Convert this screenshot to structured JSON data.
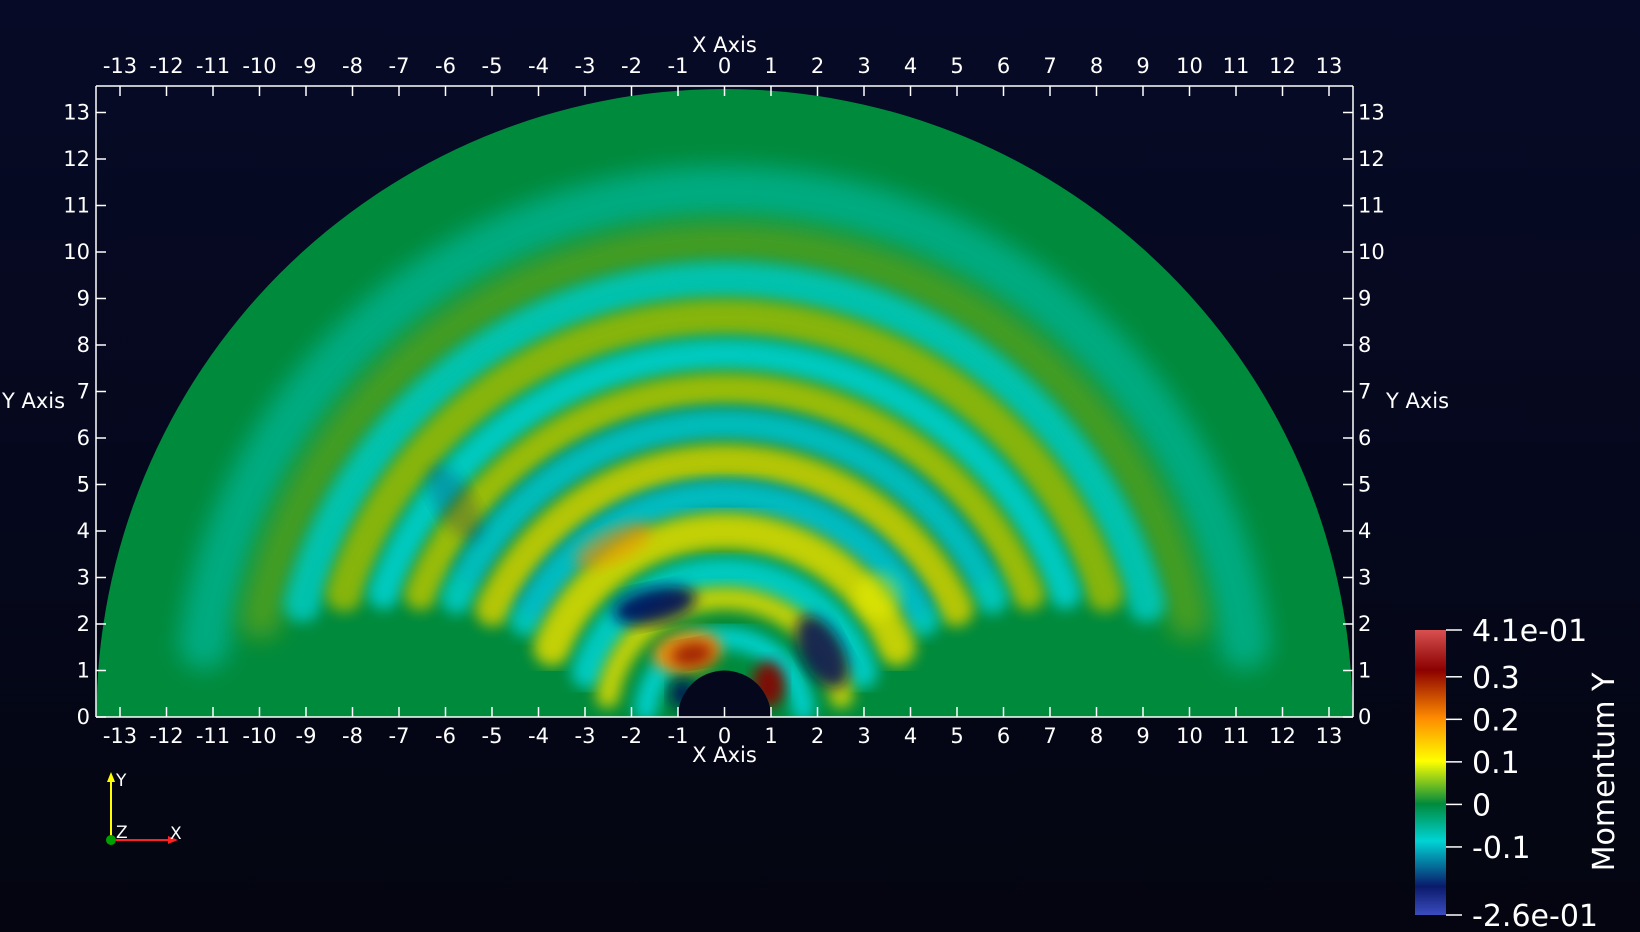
{
  "viewport": {
    "x_axis_title": "X Axis",
    "y_axis_title": "Y Axis",
    "x_ticks": [
      "-13",
      "-12",
      "-11",
      "-10",
      "-9",
      "-8",
      "-7",
      "-6",
      "-5",
      "-4",
      "-3",
      "-2",
      "-1",
      "0",
      "1",
      "2",
      "3",
      "4",
      "5",
      "6",
      "7",
      "8",
      "9",
      "10",
      "11",
      "12",
      "13"
    ],
    "y_ticks": [
      "0",
      "1",
      "2",
      "3",
      "4",
      "5",
      "6",
      "7",
      "8",
      "9",
      "10",
      "11",
      "12",
      "13"
    ],
    "x_range": [
      -13.5,
      13.5
    ],
    "y_range": [
      0,
      13.5
    ],
    "domain": {
      "shape": "half-annulus",
      "inner_radius": 1,
      "outer_radius": 13.5
    }
  },
  "colorbar": {
    "title": "Momentum Y",
    "labels": [
      "4.1e-01",
      "0.3",
      "0.2",
      "0.1",
      "0",
      "-0.1",
      "-2.6e-01"
    ],
    "values": [
      0.41,
      0.3,
      0.2,
      0.1,
      0,
      -0.1,
      -0.26
    ],
    "range": [
      -0.26,
      0.41
    ],
    "colors": [
      "#3b4cc0",
      "#0a1a6a",
      "#00d4d4",
      "#008a3c",
      "#ffff00",
      "#ff8c00",
      "#8b0000",
      "#d85050"
    ]
  },
  "orientation": {
    "y_label": "Y",
    "z_label": "Z",
    "x_label": "X",
    "colors": {
      "x": "#ff0000",
      "y": "#ffff00",
      "z": "#00a000"
    }
  },
  "colors": {
    "background": "#070a26",
    "field_base": "#008a3c",
    "axis": "#ffffff"
  }
}
